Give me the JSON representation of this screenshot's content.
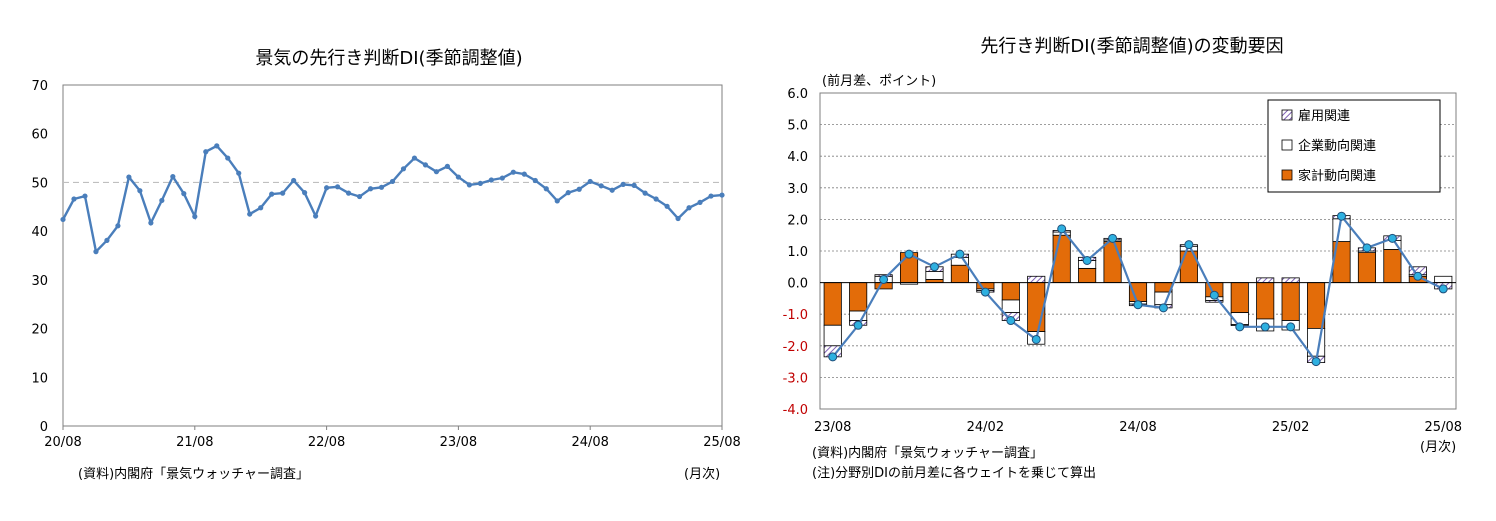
{
  "colors": {
    "line": "#4a7ebb",
    "marker_fill": "#2eb0e0",
    "household_fill": "#e36c09",
    "corporate_fill": "#ffffff",
    "employment_hatch": "#7f5fb4",
    "negative_tick": "#c00000",
    "ref_line": "#bfbfbf",
    "grid": "#7f7f7f"
  },
  "chart_data": [
    {
      "type": "line",
      "title": "景気の先行き判断DI(季節調整値)",
      "source_note": "(資料)内閣府「景気ウォッチャー調査」",
      "unit_note": "(月次)",
      "x_tick_labels": [
        "20/08",
        "21/08",
        "22/08",
        "23/08",
        "24/08",
        "25/08"
      ],
      "y_tick_labels": [
        "0",
        "10",
        "20",
        "30",
        "40",
        "50",
        "60",
        "70"
      ],
      "ylim": [
        0,
        70
      ],
      "reference_line": 50,
      "x": [
        "20/08",
        "20/09",
        "20/10",
        "20/11",
        "20/12",
        "21/01",
        "21/02",
        "21/03",
        "21/04",
        "21/05",
        "21/06",
        "21/07",
        "21/08",
        "21/09",
        "21/10",
        "21/11",
        "21/12",
        "22/01",
        "22/02",
        "22/03",
        "22/04",
        "22/05",
        "22/06",
        "22/07",
        "22/08",
        "22/09",
        "22/10",
        "22/11",
        "22/12",
        "23/01",
        "23/02",
        "23/03",
        "23/04",
        "23/05",
        "23/06",
        "23/07",
        "23/08",
        "23/09",
        "23/10",
        "23/11",
        "23/12",
        "24/01",
        "24/02",
        "24/03",
        "24/04",
        "24/05",
        "24/06",
        "24/07",
        "24/08",
        "24/09",
        "24/10",
        "24/11",
        "24/12",
        "25/01",
        "25/02",
        "25/03",
        "25/04",
        "25/05",
        "25/06",
        "25/07",
        "25/08"
      ],
      "values": [
        42.4,
        46.6,
        47.2,
        35.8,
        38.1,
        41.1,
        51.1,
        48.3,
        41.7,
        46.3,
        51.2,
        47.7,
        43.0,
        56.3,
        57.5,
        55.0,
        51.9,
        43.5,
        44.8,
        47.6,
        47.8,
        50.4,
        47.9,
        43.1,
        48.9,
        49.1,
        47.8,
        47.1,
        48.7,
        49.0,
        50.2,
        52.8,
        55.0,
        53.6,
        52.2,
        53.3,
        51.1,
        49.5,
        49.8,
        50.5,
        50.9,
        52.1,
        51.7,
        50.4,
        48.7,
        46.2,
        47.9,
        48.6,
        50.2,
        49.3,
        48.4,
        49.6,
        49.4,
        47.8,
        46.6,
        45.1,
        42.6,
        44.8,
        45.9,
        47.2,
        47.4
      ]
    },
    {
      "type": "bar",
      "stacked": true,
      "title": "先行き判断DI(季節調整値)の変動要因",
      "y_unit_label": "(前月差、ポイント)",
      "source_note": "(資料)内閣府「景気ウォッチャー調査」",
      "note": "(注)分野別DIの前月差に各ウェイトを乗じて算出",
      "unit_note": "(月次)",
      "x_tick_labels": [
        "23/08",
        "24/02",
        "24/08",
        "25/02",
        "25/08"
      ],
      "y_tick_labels": [
        "-4.0",
        "-3.0",
        "-2.0",
        "-1.0",
        "0.0",
        "1.0",
        "2.0",
        "3.0",
        "4.0",
        "5.0",
        "6.0"
      ],
      "ylim": [
        -4,
        6
      ],
      "legend": [
        "雇用関連",
        "企業動向関連",
        "家計動向関連"
      ],
      "legend_position": "top-right",
      "categories": [
        "23/08",
        "23/09",
        "23/10",
        "23/11",
        "23/12",
        "24/01",
        "24/02",
        "24/03",
        "24/04",
        "24/05",
        "24/06",
        "24/07",
        "24/08",
        "24/09",
        "24/10",
        "24/11",
        "24/12",
        "25/01",
        "25/02",
        "25/03",
        "25/04",
        "25/05",
        "25/06",
        "25/07",
        "25/08"
      ],
      "series": [
        {
          "name": "家計動向関連",
          "values": [
            -1.35,
            -0.9,
            -0.2,
            0.95,
            0.1,
            0.55,
            -0.2,
            -0.55,
            -1.55,
            1.5,
            0.45,
            1.3,
            -0.6,
            -0.3,
            1.0,
            -0.45,
            -0.95,
            -1.15,
            -1.2,
            -1.45,
            1.3,
            0.95,
            1.05,
            0.2,
            0.0
          ]
        },
        {
          "name": "企業動向関連",
          "values": [
            -0.65,
            -0.3,
            0.2,
            -0.05,
            0.25,
            0.25,
            -0.05,
            -0.4,
            -0.4,
            0.1,
            0.25,
            0.05,
            -0.08,
            -0.4,
            0.15,
            -0.12,
            -0.38,
            -0.38,
            -0.3,
            -0.88,
            0.72,
            0.05,
            0.28,
            0.05,
            0.2
          ]
        },
        {
          "name": "雇用関連",
          "values": [
            -0.35,
            -0.15,
            0.05,
            0.0,
            0.15,
            0.1,
            -0.05,
            -0.25,
            0.2,
            0.05,
            0.1,
            0.05,
            -0.05,
            -0.1,
            0.05,
            -0.05,
            -0.03,
            0.15,
            0.15,
            -0.2,
            0.1,
            0.1,
            0.15,
            0.25,
            -0.2
          ]
        }
      ],
      "total": [
        -2.35,
        -1.35,
        0.1,
        0.9,
        0.5,
        0.9,
        -0.3,
        -1.2,
        -1.8,
        1.7,
        0.7,
        1.4,
        -0.7,
        -0.8,
        1.2,
        -0.4,
        -1.4,
        -1.4,
        -1.4,
        -2.5,
        2.1,
        1.1,
        1.4,
        0.2,
        -0.2
      ]
    }
  ]
}
